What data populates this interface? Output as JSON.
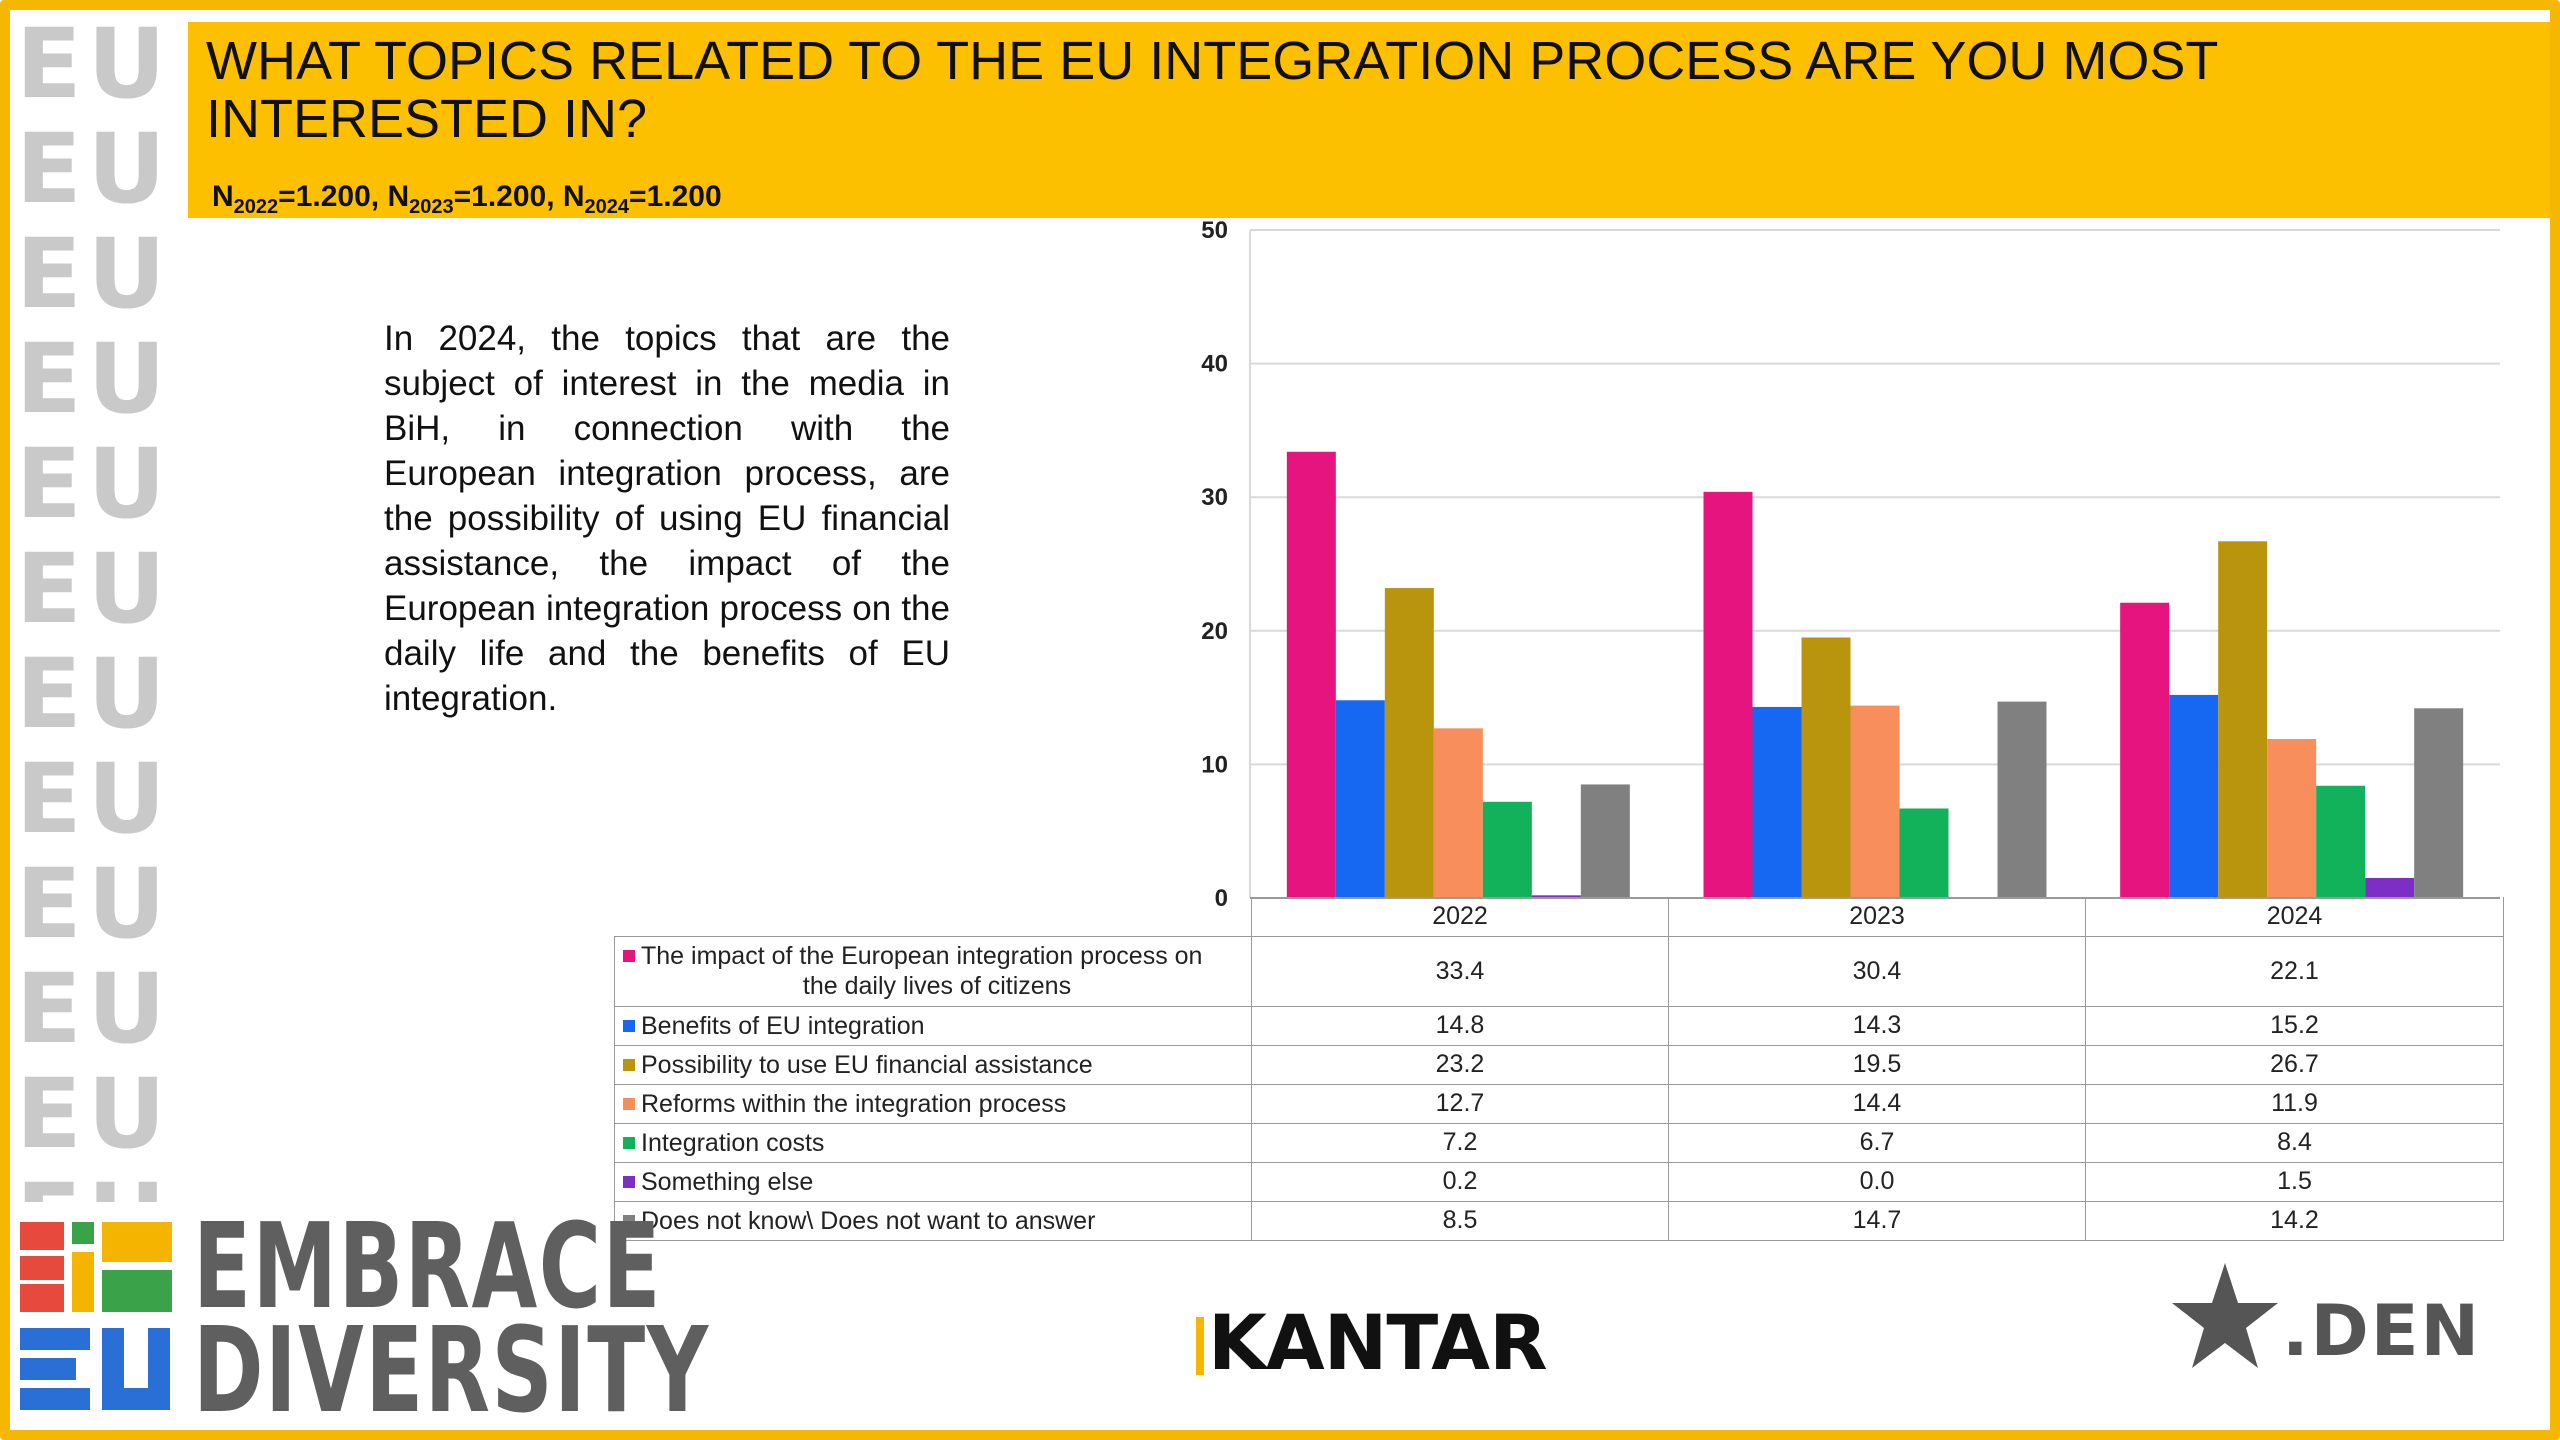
{
  "header": {
    "title": "WHAT TOPICS RELATED TO THE EU INTEGRATION PROCESS ARE YOU MOST INTERESTED IN?",
    "n_items": [
      {
        "prefix": "N",
        "sub": "2022",
        "value": "=1.200, "
      },
      {
        "prefix": "N",
        "sub": "2023",
        "value": "=1.200, "
      },
      {
        "prefix": "N",
        "sub": "2024",
        "value": "=1.200"
      }
    ]
  },
  "description": "In 2024, the topics that are the subject of interest in the media in BiH, in connection with the European integration process, are the possibility of using EU financial assistance, the impact of the European integration process on the daily life and the benefits of EU integration.",
  "brand": {
    "pattern_text": "EU",
    "line1": "EMBRACE",
    "line2": "DIVERSITY"
  },
  "footer": {
    "kantar": "KANTAR",
    "den": ".DEN"
  },
  "chart_data": {
    "type": "bar",
    "categories": [
      "2022",
      "2023",
      "2024"
    ],
    "ylim": [
      0,
      50
    ],
    "yticks": [
      0,
      10,
      20,
      30,
      40,
      50
    ],
    "grid": true,
    "legend": "table-below",
    "series": [
      {
        "name": "The impact of the European integration process on the daily lives of citizens",
        "label_line1": "The impact of the European integration process on",
        "label_line2": "the daily lives of citizens",
        "color": "#e5147f",
        "values": [
          33.4,
          30.4,
          22.1
        ]
      },
      {
        "name": "Benefits of EU integration",
        "color": "#1667f2",
        "values": [
          14.8,
          14.3,
          15.2
        ]
      },
      {
        "name": "Possibility to use EU financial assistance",
        "color": "#b8950c",
        "values": [
          23.2,
          19.5,
          26.7
        ]
      },
      {
        "name": "Reforms within the integration process",
        "color": "#f88e5c",
        "values": [
          12.7,
          14.4,
          11.9
        ]
      },
      {
        "name": "Integration costs",
        "color": "#11b25a",
        "values": [
          7.2,
          6.7,
          8.4
        ]
      },
      {
        "name": "Something else",
        "color": "#7d2ec6",
        "values": [
          0.2,
          0.0,
          1.5
        ]
      },
      {
        "name": "Does not know\\ Does not want to answer",
        "color": "#808080",
        "values": [
          8.5,
          14.7,
          14.2
        ]
      }
    ],
    "value_labels": [
      [
        "33.4",
        "30.4",
        "22.1"
      ],
      [
        "14.8",
        "14.3",
        "15.2"
      ],
      [
        "23.2",
        "19.5",
        "26.7"
      ],
      [
        "12.7",
        "14.4",
        "11.9"
      ],
      [
        "7.2",
        "6.7",
        "8.4"
      ],
      [
        "0.2",
        "0.0",
        "1.5"
      ],
      [
        "8.5",
        "14.7",
        "14.2"
      ]
    ]
  }
}
